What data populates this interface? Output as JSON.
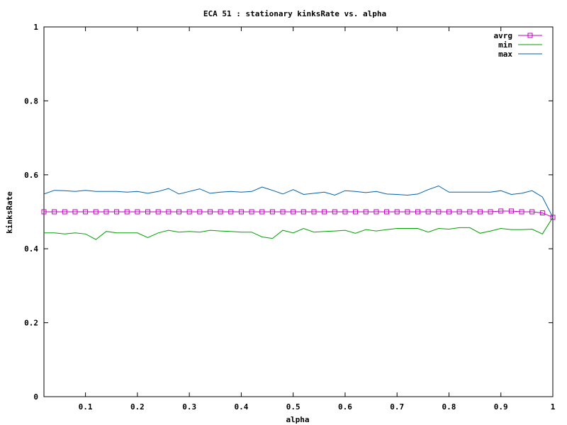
{
  "chart_data": {
    "type": "line",
    "title": "ECA 51 : stationary kinksRate vs. alpha",
    "xlabel": "alpha",
    "ylabel": "kinksRate",
    "xlim": [
      0.02,
      1.0
    ],
    "ylim": [
      0,
      1
    ],
    "x_ticks": [
      {
        "value": 0.1,
        "label": "0.1"
      },
      {
        "value": 0.2,
        "label": "0.2"
      },
      {
        "value": 0.3,
        "label": "0.3"
      },
      {
        "value": 0.4,
        "label": "0.4"
      },
      {
        "value": 0.5,
        "label": "0.5"
      },
      {
        "value": 0.6,
        "label": "0.6"
      },
      {
        "value": 0.7,
        "label": "0.7"
      },
      {
        "value": 0.8,
        "label": "0.8"
      },
      {
        "value": 0.9,
        "label": "0.9"
      },
      {
        "value": 1.0,
        "label": "1"
      }
    ],
    "y_ticks": [
      {
        "value": 0,
        "label": "0"
      },
      {
        "value": 0.2,
        "label": "0.2"
      },
      {
        "value": 0.4,
        "label": "0.4"
      },
      {
        "value": 0.6,
        "label": "0.6"
      },
      {
        "value": 0.8,
        "label": "0.8"
      },
      {
        "value": 1,
        "label": "1"
      }
    ],
    "grid": false,
    "legend_position": "top-right",
    "x": [
      0.02,
      0.04,
      0.06,
      0.08,
      0.1,
      0.12,
      0.14,
      0.16,
      0.18,
      0.2,
      0.22,
      0.24,
      0.26,
      0.28,
      0.3,
      0.32,
      0.34,
      0.36,
      0.38,
      0.4,
      0.42,
      0.44,
      0.46,
      0.48,
      0.5,
      0.52,
      0.54,
      0.56,
      0.58,
      0.6,
      0.62,
      0.64,
      0.66,
      0.68,
      0.7,
      0.72,
      0.74,
      0.76,
      0.78,
      0.8,
      0.82,
      0.84,
      0.86,
      0.88,
      0.9,
      0.92,
      0.94,
      0.96,
      0.98,
      1.0
    ],
    "series": [
      {
        "name": "avrg",
        "color": "#c000c0",
        "marker": "square",
        "values": [
          0.5,
          0.5,
          0.5,
          0.5,
          0.5,
          0.5,
          0.5,
          0.5,
          0.5,
          0.5,
          0.5,
          0.5,
          0.5,
          0.5,
          0.5,
          0.5,
          0.5,
          0.5,
          0.5,
          0.5,
          0.5,
          0.5,
          0.5,
          0.5,
          0.5,
          0.5,
          0.5,
          0.5,
          0.5,
          0.5,
          0.5,
          0.5,
          0.5,
          0.5,
          0.5,
          0.5,
          0.5,
          0.5,
          0.5,
          0.5,
          0.5,
          0.5,
          0.5,
          0.5,
          0.502,
          0.502,
          0.5,
          0.5,
          0.497,
          0.485
        ]
      },
      {
        "name": "min",
        "color": "#00a000",
        "marker": "none",
        "values": [
          0.443,
          0.443,
          0.44,
          0.443,
          0.44,
          0.425,
          0.447,
          0.443,
          0.443,
          0.443,
          0.43,
          0.443,
          0.45,
          0.445,
          0.447,
          0.445,
          0.45,
          0.448,
          0.447,
          0.445,
          0.445,
          0.432,
          0.428,
          0.45,
          0.443,
          0.455,
          0.445,
          0.447,
          0.448,
          0.45,
          0.442,
          0.452,
          0.448,
          0.452,
          0.455,
          0.455,
          0.455,
          0.445,
          0.455,
          0.453,
          0.457,
          0.457,
          0.442,
          0.448,
          0.455,
          0.452,
          0.452,
          0.453,
          0.44,
          0.485
        ]
      },
      {
        "name": "max",
        "color": "#0060ad",
        "marker": "none",
        "values": [
          0.548,
          0.558,
          0.557,
          0.555,
          0.558,
          0.555,
          0.555,
          0.555,
          0.553,
          0.555,
          0.55,
          0.555,
          0.563,
          0.548,
          0.555,
          0.562,
          0.55,
          0.553,
          0.555,
          0.553,
          0.555,
          0.567,
          0.558,
          0.548,
          0.56,
          0.547,
          0.55,
          0.553,
          0.545,
          0.557,
          0.555,
          0.552,
          0.555,
          0.548,
          0.547,
          0.545,
          0.548,
          0.56,
          0.57,
          0.553,
          0.553,
          0.553,
          0.553,
          0.553,
          0.557,
          0.547,
          0.55,
          0.557,
          0.54,
          0.485
        ]
      }
    ]
  }
}
